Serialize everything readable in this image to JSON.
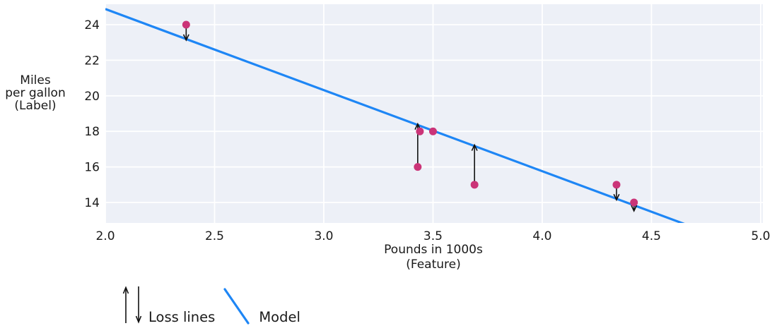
{
  "chart_data": {
    "type": "scatter",
    "title": "",
    "xlabel": "Pounds in 1000s\n(Feature)",
    "ylabel": "Miles\nper gallon\n(Label)",
    "x_ticks": [
      2.0,
      2.5,
      3.0,
      3.5,
      4.0,
      4.5,
      5.0
    ],
    "x_tick_labels": [
      "2.0",
      "2.5",
      "3.0",
      "3.5",
      "4.0",
      "4.5",
      "5.0"
    ],
    "y_ticks": [
      14,
      16,
      18,
      20,
      22,
      24
    ],
    "y_tick_labels": [
      "14",
      "16",
      "18",
      "20",
      "22",
      "24"
    ],
    "xlim": [
      2.0,
      5.01
    ],
    "ylim": [
      12.85,
      25.15
    ],
    "grid": true,
    "points": [
      {
        "x": 2.37,
        "y": 24
      },
      {
        "x": 3.43,
        "y": 16
      },
      {
        "x": 3.44,
        "y": 18
      },
      {
        "x": 3.5,
        "y": 18
      },
      {
        "x": 3.69,
        "y": 15
      },
      {
        "x": 4.34,
        "y": 15
      },
      {
        "x": 4.42,
        "y": 14
      }
    ],
    "model": {
      "slope": -4.56,
      "intercept": 34.0
    },
    "loss_line_xs": [
      2.37,
      3.43,
      3.69,
      4.34,
      4.42
    ],
    "legend": [
      {
        "icon": "loss-arrows",
        "label": "Loss lines"
      },
      {
        "icon": "model-line",
        "label": "Model"
      }
    ]
  },
  "colors": {
    "plot_bg": "#edf0f7",
    "grid": "#ffffff",
    "model_line": "#1e86f5",
    "point": "#cb3478",
    "arrow": "#111111",
    "text": "#1a1a1a"
  }
}
